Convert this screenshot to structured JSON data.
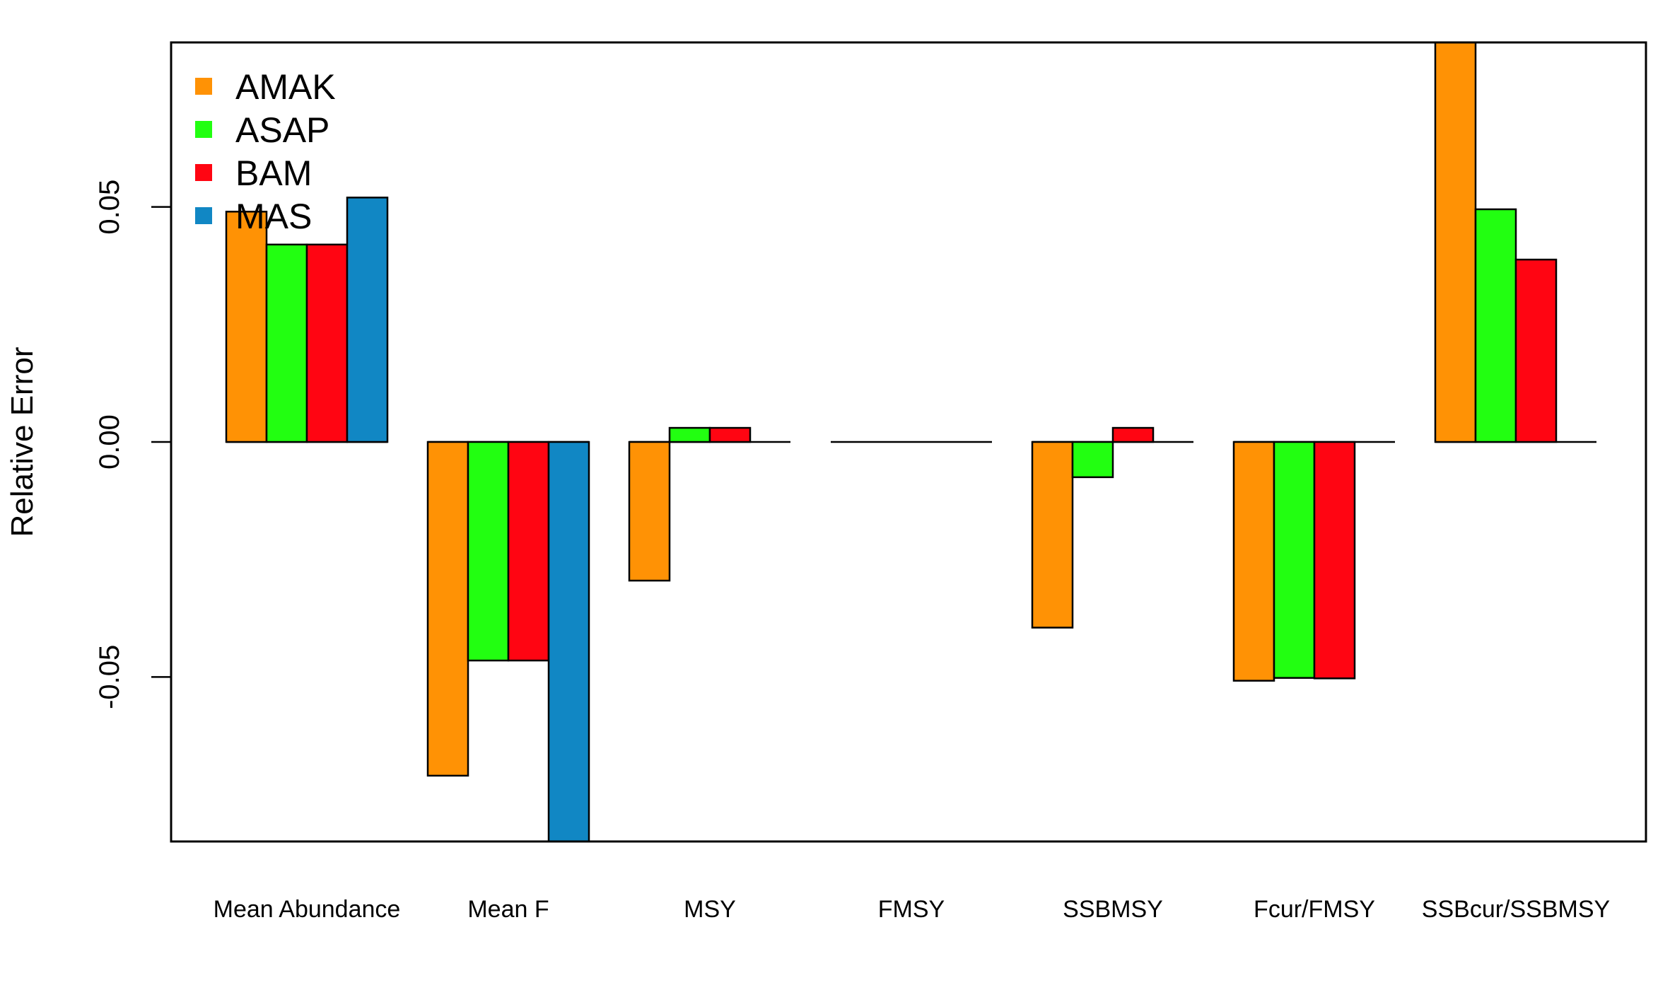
{
  "chart_data": {
    "type": "bar",
    "ylabel": "Relative Error",
    "xlabel": "",
    "categories": [
      "Mean Abundance",
      "Mean F",
      "MSY",
      "FMSY",
      "SSBMSY",
      "Fcur/FMSY",
      "SSBcur/SSBMSY"
    ],
    "series": [
      {
        "name": "AMAK",
        "color": "#FF9205",
        "values": [
          0.049,
          -0.071,
          -0.0295,
          0.0,
          -0.0395,
          -0.0508,
          0.085
        ]
      },
      {
        "name": "ASAP",
        "color": "#22FF11",
        "values": [
          0.042,
          -0.0465,
          0.003,
          0.0,
          -0.0075,
          -0.0502,
          0.0495
        ]
      },
      {
        "name": "BAM",
        "color": "#FF0512",
        "values": [
          0.042,
          -0.0465,
          0.003,
          0.0,
          0.003,
          -0.0503,
          0.0388
        ]
      },
      {
        "name": "MAS",
        "color": "#1187C4",
        "values": [
          0.052,
          -0.085,
          0.0,
          0.0,
          0.0,
          0.0,
          0.0
        ]
      }
    ],
    "ylim": [
      -0.085,
      0.085
    ],
    "yticks": [
      -0.05,
      0.0,
      0.05
    ],
    "ytick_labels": [
      "-0.05",
      "0.00",
      "0.05"
    ],
    "grid": false,
    "legend_position": "top-left"
  }
}
